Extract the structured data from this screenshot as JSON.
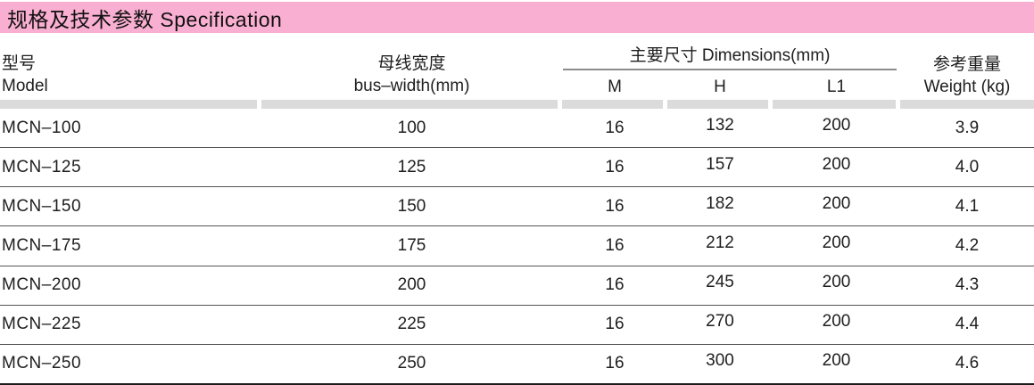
{
  "title": "规格及技术参数 Specification",
  "colors": {
    "title_bg": "#F9AFD1",
    "separator": "#DBDBDB"
  },
  "header": {
    "model_zh": "型号",
    "model_en": "Model",
    "bus_zh": "母线宽度",
    "bus_en": "bus–width(mm)",
    "dims_label": "主要尺寸 Dimensions(mm)",
    "dims_m": "M",
    "dims_h": "H",
    "dims_l1": "L1",
    "weight_zh": "参考重量",
    "weight_en": "Weight (kg)"
  },
  "rows": [
    {
      "model": "MCN–100",
      "bus": "100",
      "m": "16",
      "h": "132",
      "l1": "200",
      "w": "3.9"
    },
    {
      "model": "MCN–125",
      "bus": "125",
      "m": "16",
      "h": "157",
      "l1": "200",
      "w": "4.0"
    },
    {
      "model": "MCN–150",
      "bus": "150",
      "m": "16",
      "h": "182",
      "l1": "200",
      "w": "4.1"
    },
    {
      "model": "MCN–175",
      "bus": "175",
      "m": "16",
      "h": "212",
      "l1": "200",
      "w": "4.2"
    },
    {
      "model": "MCN–200",
      "bus": "200",
      "m": "16",
      "h": "245",
      "l1": "200",
      "w": "4.3"
    },
    {
      "model": "MCN–225",
      "bus": "225",
      "m": "16",
      "h": "270",
      "l1": "200",
      "w": "4.4"
    },
    {
      "model": "MCN–250",
      "bus": "250",
      "m": "16",
      "h": "300",
      "l1": "200",
      "w": "4.6"
    }
  ]
}
